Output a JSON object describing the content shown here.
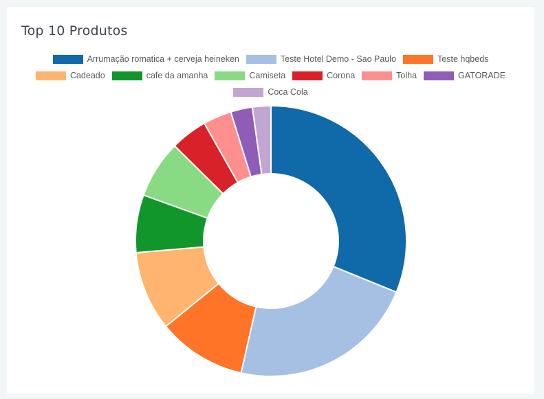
{
  "card": {
    "title": "Top 10 Produtos"
  },
  "chart_data": {
    "type": "pie",
    "variant": "doughnut",
    "legend_position": "top",
    "labels": [
      "Arrumação romatica + cerveja heineken",
      "Teste Hotel Demo - Sao Paulo",
      "Teste hqbeds",
      "Cadeado",
      "cafe da amanha",
      "Camiseta",
      "Corona",
      "Tolha",
      "GATORADE",
      "Coca Cola"
    ],
    "values": [
      31.2,
      22.4,
      10.6,
      9.5,
      6.9,
      6.9,
      4.4,
      3.4,
      2.6,
      2.2
    ],
    "colors": [
      "#1069a8",
      "#a6c0e4",
      "#ff7426",
      "#ffb46f",
      "#11962c",
      "#88db82",
      "#d9212a",
      "#ff8f8f",
      "#8f5db7",
      "#c1a6d0"
    ]
  }
}
